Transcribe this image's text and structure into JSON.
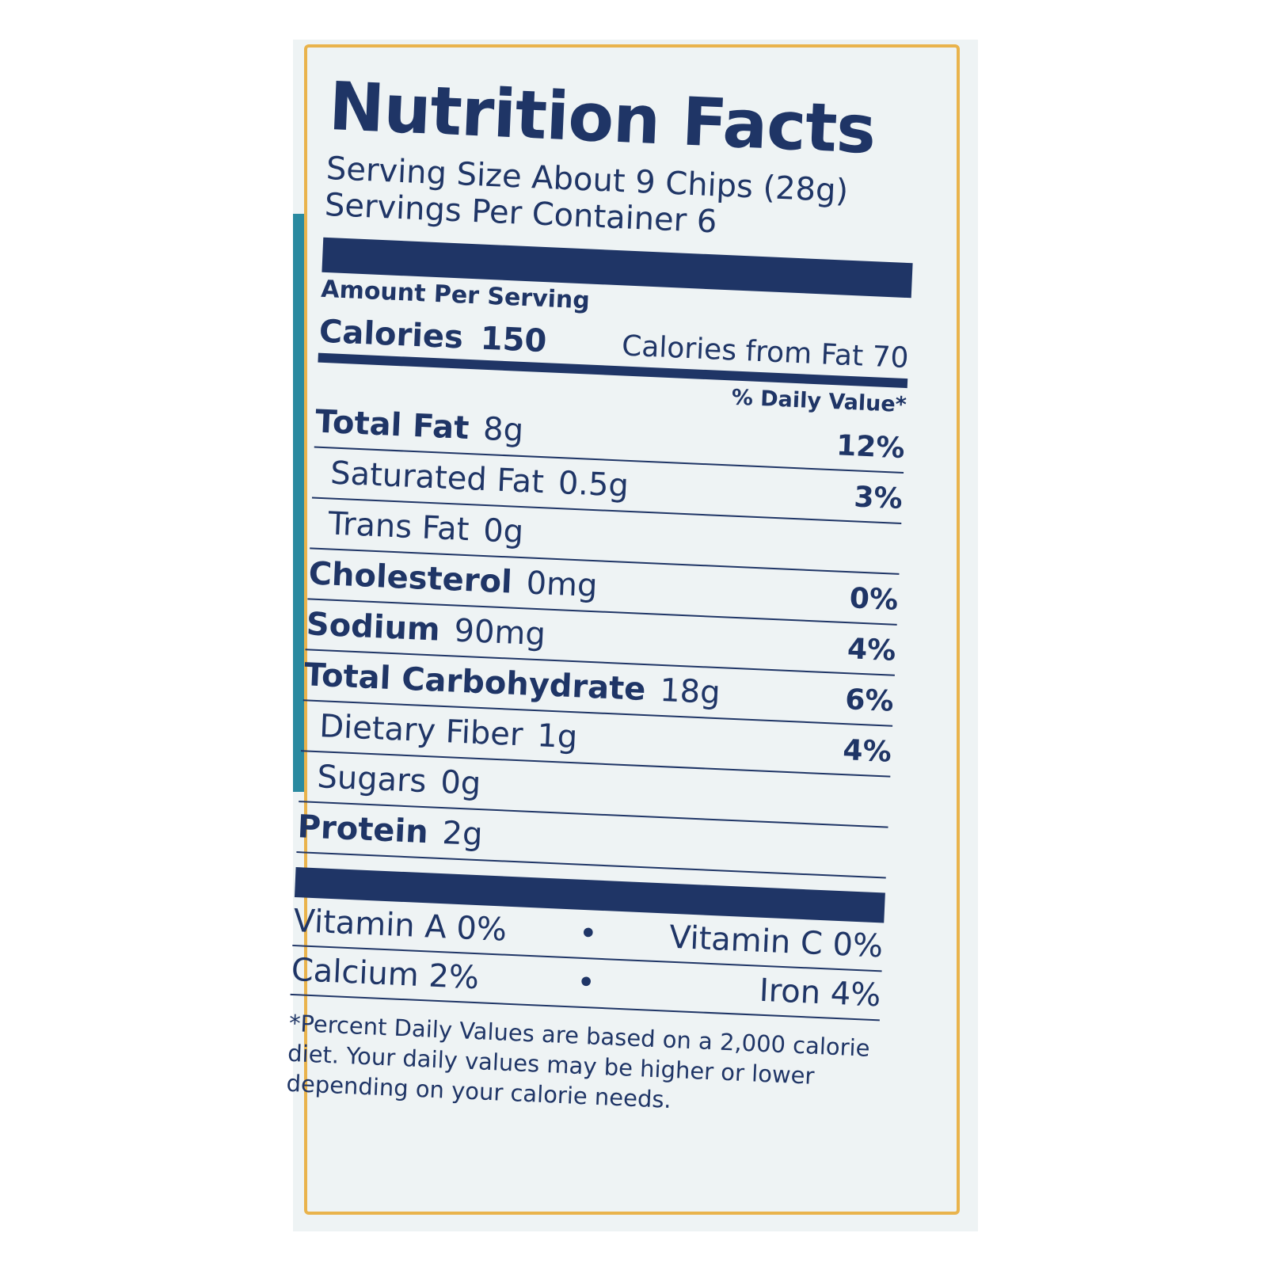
{
  "title": "Nutrition Facts",
  "serving_size": "Serving Size About 9 Chips (28g)",
  "servings_per_container": "Servings Per Container 6",
  "amount_per_serving": "Amount Per Serving",
  "calories": {
    "label": "Calories",
    "value": "150",
    "from_fat": "Calories from Fat 70"
  },
  "daily_value_header": "% Daily Value*",
  "nutrients": [
    {
      "label": "Total Fat",
      "amount": "8g",
      "dv": "12%",
      "bold": true
    },
    {
      "label": "Saturated Fat",
      "amount": "0.5g",
      "dv": "3%",
      "bold": false
    },
    {
      "label": "Trans Fat",
      "amount": "0g",
      "bold": false
    },
    {
      "label": "Cholesterol",
      "amount": "0mg",
      "dv": "0%",
      "bold": true
    },
    {
      "label": "Sodium",
      "amount": "90mg",
      "dv": "4%",
      "bold": true
    },
    {
      "label": "Total Carbohydrate",
      "amount": "18g",
      "dv": "6%",
      "bold": true
    },
    {
      "label": "Dietary Fiber",
      "amount": "1g",
      "dv": "4%",
      "bold": false
    },
    {
      "label": "Sugars",
      "amount": "0g",
      "bold": false
    },
    {
      "label": "Protein",
      "amount": "2g",
      "bold": true
    }
  ],
  "vitamins": [
    [
      "Vitamin A 0%",
      "Vitamin C 0%"
    ],
    [
      "Calcium 2%",
      "Iron 4%"
    ]
  ],
  "footnote": "*Percent Daily Values are based on a 2,000 calorie diet. Your daily values may be higher or lower depending on your calorie needs."
}
